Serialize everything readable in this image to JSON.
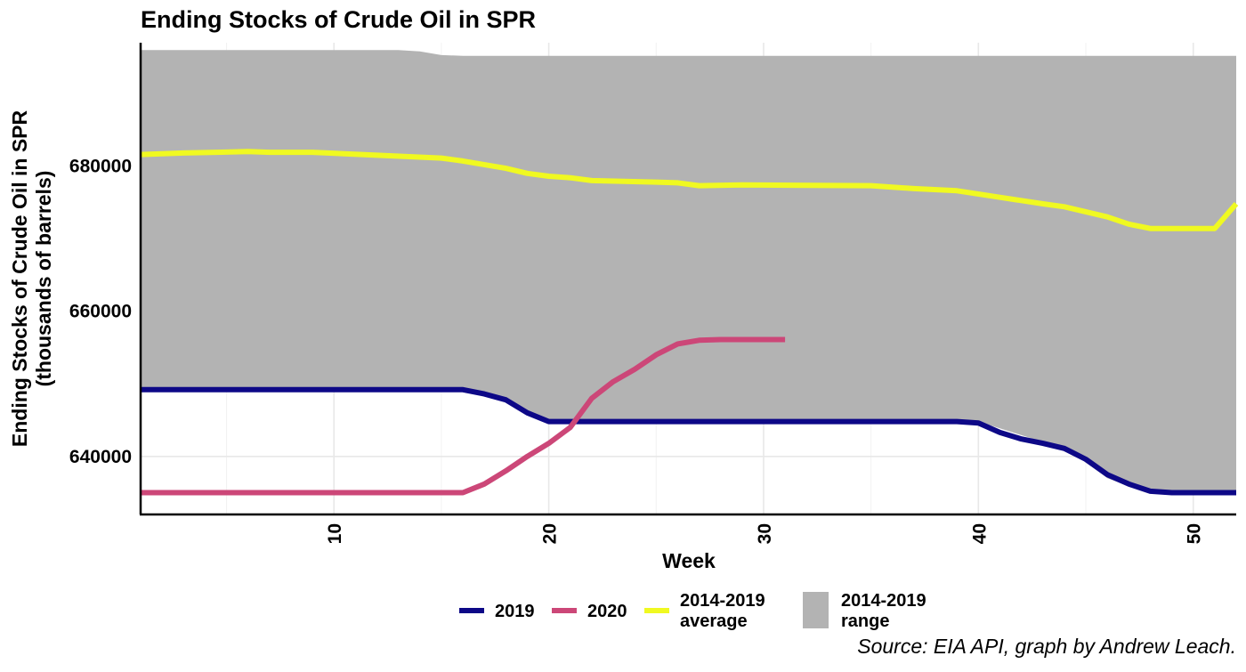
{
  "chart_data": {
    "type": "line",
    "title": "Ending Stocks of Crude Oil in SPR",
    "xlabel": "Week",
    "ylabel": [
      "Ending Stocks of Crude Oil in SPR",
      "(thousands of barrels)"
    ],
    "xlim": [
      1,
      52
    ],
    "ylim": [
      632000,
      697000
    ],
    "x_ticks": [
      10,
      20,
      30,
      40,
      50
    ],
    "y_ticks": [
      640000,
      660000,
      680000
    ],
    "y_tick_labels": [
      "640000",
      "660000",
      "680000"
    ],
    "x_tick_labels": [
      "10",
      "20",
      "30",
      "40",
      "50"
    ],
    "grid": true,
    "colors": {
      "2019": "#0d0887",
      "2020": "#cc4778",
      "average": "#f0f921",
      "range": "#b3b3b3"
    },
    "range": {
      "name": [
        "2014-2019",
        "range"
      ],
      "x": [
        1,
        12,
        13,
        14,
        15,
        16,
        18,
        20,
        30,
        40,
        43,
        44,
        45,
        46,
        47,
        48,
        52
      ],
      "upper": [
        696000,
        696000,
        696000,
        695800,
        695300,
        695200,
        695200,
        695200,
        695200,
        695200,
        695200,
        695200,
        695200,
        695200,
        695200,
        695200,
        695200
      ],
      "lower": [
        649200,
        649200,
        649200,
        649200,
        649200,
        649200,
        647800,
        644800,
        644800,
        644800,
        642000,
        641000,
        639200,
        637000,
        635900,
        635200,
        635000
      ]
    },
    "series": [
      {
        "name": "2014-2019 average",
        "label_lines": [
          "2014-2019",
          "average"
        ],
        "x": [
          1,
          3,
          6,
          7,
          9,
          12,
          15,
          16,
          18,
          19,
          20,
          21,
          22,
          25,
          26,
          27,
          29,
          35,
          37,
          39,
          41,
          43,
          44,
          46,
          47,
          48,
          51,
          52
        ],
        "values": [
          681600,
          681800,
          682000,
          681900,
          681900,
          681500,
          681100,
          680700,
          679700,
          679000,
          678600,
          678400,
          678000,
          677800,
          677700,
          677300,
          677400,
          677300,
          676900,
          676600,
          675700,
          674800,
          674400,
          673000,
          672000,
          671400,
          671400,
          674800
        ]
      },
      {
        "name": "2019",
        "label_lines": [
          "2019"
        ],
        "x": [
          1,
          16,
          17,
          18,
          19,
          20,
          39,
          40,
          41,
          42,
          43,
          44,
          45,
          46,
          47,
          48,
          49,
          52
        ],
        "values": [
          649200,
          649200,
          648600,
          647800,
          646000,
          644800,
          644800,
          644600,
          643300,
          642400,
          641800,
          641100,
          639600,
          637500,
          636200,
          635200,
          635000,
          635000
        ]
      },
      {
        "name": "2020",
        "label_lines": [
          "2020"
        ],
        "x": [
          1,
          16,
          17,
          18,
          19,
          20,
          21,
          22,
          23,
          24,
          25,
          26,
          27,
          28,
          29,
          30,
          31
        ],
        "values": [
          635000,
          635000,
          636200,
          638000,
          640000,
          641800,
          644000,
          648000,
          650300,
          652000,
          654000,
          655500,
          656000,
          656100,
          656100,
          656100,
          656100
        ]
      }
    ],
    "legend": {
      "position": "bottom",
      "order": [
        "2019",
        "2020",
        "2014-2019 average",
        "2014-2019 range"
      ]
    },
    "caption": "Source: EIA API, graph by Andrew Leach."
  }
}
